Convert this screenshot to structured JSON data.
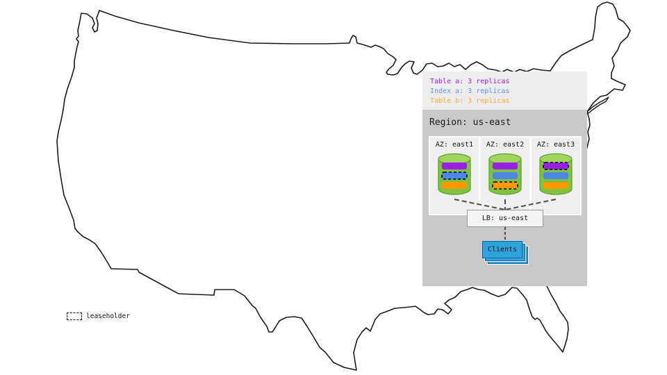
{
  "legend": {
    "items": [
      {
        "label": "Table a: 3 replicas",
        "color": "#a21cf0"
      },
      {
        "label": "Index a: 3 replicas",
        "color": "#6495ed"
      },
      {
        "label": "Table b: 3 replicas",
        "color": "#ffa62e"
      }
    ]
  },
  "region": {
    "title": "Region: us-east",
    "azs": [
      {
        "label": "AZ: east1",
        "replicas": [
          {
            "name": "table-a-replica",
            "color": "#9c1fe8",
            "leaseholder": false
          },
          {
            "name": "index-a-replica",
            "color": "#4e86e8",
            "leaseholder": true
          },
          {
            "name": "table-b-replica",
            "color": "#ff9800",
            "leaseholder": false
          }
        ]
      },
      {
        "label": "AZ: east2",
        "replicas": [
          {
            "name": "table-a-replica",
            "color": "#9c1fe8",
            "leaseholder": false
          },
          {
            "name": "index-a-replica",
            "color": "#4e86e8",
            "leaseholder": false
          },
          {
            "name": "table-b-replica",
            "color": "#ff9800",
            "leaseholder": true
          }
        ]
      },
      {
        "label": "AZ: east3",
        "replicas": [
          {
            "name": "table-a-replica",
            "color": "#9c1fe8",
            "leaseholder": true
          },
          {
            "name": "index-a-replica",
            "color": "#4e86e8",
            "leaseholder": false
          },
          {
            "name": "table-b-replica",
            "color": "#ff9800",
            "leaseholder": false
          }
        ]
      }
    ],
    "lb_label": "LB: us-east",
    "clients_label": "Clients"
  },
  "map_key": {
    "leaseholder_label": "leaseholder"
  },
  "colors": {
    "cylinder_body": "#7ec242",
    "cylinder_top": "#a0d65e",
    "cylinder_stroke": "#5fa32e",
    "clients_fill": "#2ea4dc",
    "clients_stroke": "#17619f"
  }
}
